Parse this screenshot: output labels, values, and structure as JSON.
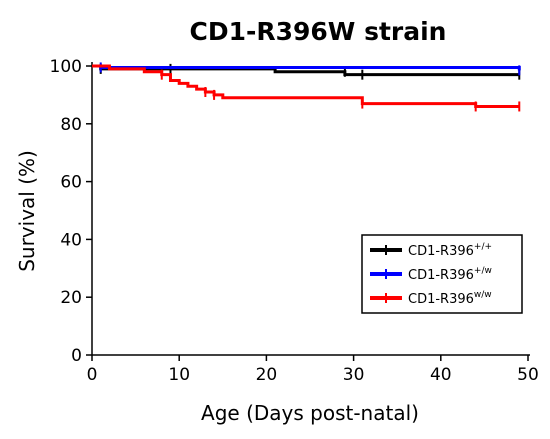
{
  "chart_data": {
    "type": "line",
    "title": "CD1-R396W strain",
    "xlabel": "Age (Days post-natal)",
    "ylabel": "Survival (%)",
    "xlim": [
      0,
      50
    ],
    "ylim": [
      0,
      100
    ],
    "x_ticks": [
      0,
      10,
      20,
      30,
      40,
      50
    ],
    "y_ticks": [
      0,
      20,
      40,
      60,
      80,
      100
    ],
    "grid": false,
    "legend_position": "bottom-right",
    "series": [
      {
        "name_base": "CD1-R396",
        "name_sup": "+/+",
        "color": "#000000",
        "steps": [
          [
            0,
            100
          ],
          [
            1,
            99
          ],
          [
            21,
            98
          ],
          [
            29,
            97
          ],
          [
            49,
            97
          ]
        ],
        "censor_marks": [
          [
            1,
            99
          ],
          [
            9,
            99
          ],
          [
            29,
            98
          ],
          [
            31,
            97
          ],
          [
            49,
            97
          ]
        ]
      },
      {
        "name_base": "CD1-R396",
        "name_sup": "+/w",
        "color": "#0000ff",
        "steps": [
          [
            0,
            100
          ],
          [
            1,
            99.5
          ],
          [
            49,
            98.5
          ]
        ],
        "censor_marks": [
          [
            1,
            99.5
          ],
          [
            49,
            98.5
          ]
        ]
      },
      {
        "name_base": "CD1-R396",
        "name_sup": "w/w",
        "color": "#ff0000",
        "steps": [
          [
            0,
            100
          ],
          [
            2,
            99
          ],
          [
            6,
            98
          ],
          [
            8,
            97
          ],
          [
            9,
            95
          ],
          [
            10,
            94
          ],
          [
            11,
            93
          ],
          [
            12,
            92
          ],
          [
            13,
            91
          ],
          [
            14,
            90
          ],
          [
            15,
            89
          ],
          [
            31,
            87
          ],
          [
            44,
            86
          ],
          [
            49,
            86
          ]
        ],
        "censor_marks": [
          [
            8,
            97
          ],
          [
            13,
            91
          ],
          [
            14,
            90
          ],
          [
            31,
            87
          ],
          [
            44,
            86
          ],
          [
            49,
            86
          ]
        ]
      }
    ]
  }
}
